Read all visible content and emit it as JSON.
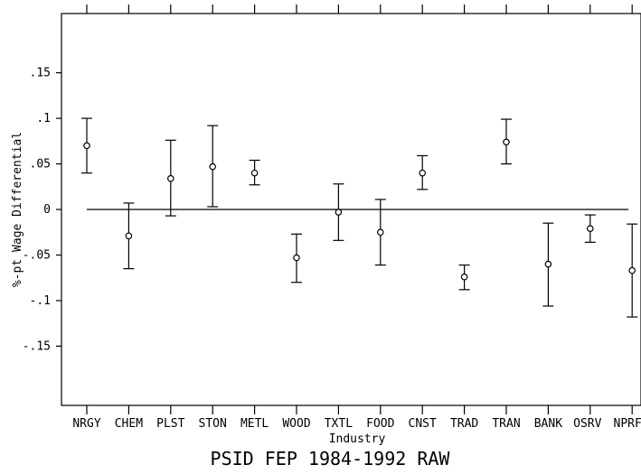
{
  "chart_data": {
    "type": "scatter",
    "title": "PSID FEP 1984-1992 RAW",
    "xlabel": "Industry",
    "ylabel": "%-pt Wage Differential",
    "ylim": [
      -0.215,
      0.215
    ],
    "yticks": [
      0.15,
      0.1,
      0.05,
      0,
      -0.05,
      -0.1,
      -0.15
    ],
    "ytick_labels": [
      ".15",
      ".1",
      ".05",
      "0",
      "-.05",
      "-.1",
      "-.15"
    ],
    "zero_line": 0,
    "grid": false,
    "categories": [
      "NRGY",
      "CHEM",
      "PLST",
      "STON",
      "METL",
      "WOOD",
      "TXTL",
      "FOOD",
      "CNST",
      "TRAD",
      "TRAN",
      "BANK",
      "OSRV",
      "NPRF"
    ],
    "series": [
      {
        "estimate": [
          0.07,
          -0.029,
          0.034,
          0.047,
          0.04,
          -0.053,
          -0.003,
          -0.025,
          0.04,
          -0.074,
          0.074,
          -0.06,
          -0.021,
          -0.067
        ],
        "lower": [
          0.04,
          -0.065,
          -0.007,
          0.003,
          0.027,
          -0.08,
          -0.034,
          -0.061,
          0.022,
          -0.088,
          0.05,
          -0.106,
          -0.036,
          -0.118
        ],
        "upper": [
          0.1,
          0.007,
          0.076,
          0.092,
          0.054,
          -0.027,
          0.028,
          0.011,
          0.059,
          -0.061,
          0.099,
          -0.015,
          -0.006,
          -0.016
        ]
      }
    ]
  }
}
